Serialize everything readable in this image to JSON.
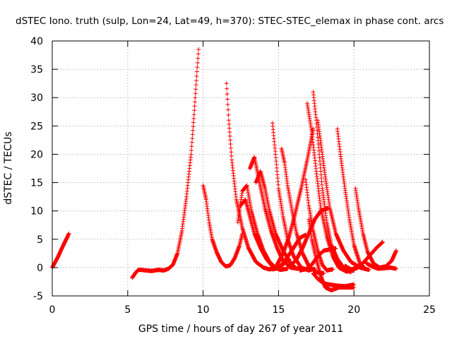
{
  "chart_data": {
    "type": "scatter",
    "title": "dSTEC Iono. truth (sulp, Lon=24, Lat=49, h=370): STEC-STEC_elemax in phase cont. arcs",
    "xlabel": "GPS time / hours of day 267 of year 2011",
    "ylabel": "dSTEC  / TECUs",
    "xlim": [
      0,
      25
    ],
    "ylim": [
      -5,
      40
    ],
    "x_ticks": [
      0,
      5,
      10,
      15,
      20,
      25
    ],
    "y_ticks": [
      -5,
      0,
      5,
      10,
      15,
      20,
      25,
      30,
      35,
      40
    ],
    "x_tick_labels": [
      "0",
      "5",
      "10",
      "15",
      "20",
      "25"
    ],
    "y_tick_labels": [
      "-5",
      "0",
      "5",
      "10",
      "15",
      "20",
      "25",
      "30",
      "35",
      "40"
    ],
    "grid": true,
    "marker": "plus",
    "series_color": "#ff0000",
    "series": [
      {
        "x": [
          0.0,
          0.2,
          0.4,
          0.6,
          0.8,
          1.0,
          1.1
        ],
        "y": [
          0.0,
          1.0,
          2.0,
          3.2,
          4.3,
          5.4,
          6.0
        ]
      },
      {
        "x": [
          5.3,
          5.5,
          5.7,
          5.9,
          6.2,
          6.6,
          7.0,
          7.4,
          7.7,
          8.0,
          8.3,
          8.6,
          8.9,
          9.2,
          9.4,
          9.55,
          9.7
        ],
        "y": [
          -1.8,
          -1.0,
          -0.4,
          -0.4,
          -0.5,
          -0.6,
          -0.4,
          -0.5,
          -0.2,
          0.5,
          2.5,
          6.5,
          12.5,
          20.0,
          27.0,
          33.0,
          38.5
        ]
      },
      {
        "x": [
          10.0,
          10.2,
          10.4,
          10.6,
          10.9,
          11.2,
          11.5,
          11.8,
          12.1,
          12.4,
          12.6
        ],
        "y": [
          14.5,
          12.0,
          8.0,
          5.0,
          2.7,
          1.0,
          0.2,
          0.4,
          1.7,
          3.8,
          6.0
        ]
      },
      {
        "x": [
          11.55,
          11.7,
          11.9,
          12.2,
          12.6,
          13.0,
          13.5,
          14.0,
          14.4,
          14.7
        ],
        "y": [
          32.5,
          26.0,
          19.0,
          12.0,
          7.0,
          3.5,
          1.0,
          0.0,
          -0.3,
          -0.2
        ]
      },
      {
        "x": [
          12.3,
          12.6,
          12.9,
          13.2,
          13.6,
          14.0,
          14.4,
          14.8,
          15.2,
          15.7
        ],
        "y": [
          8.0,
          13.5,
          14.5,
          10.0,
          6.0,
          3.0,
          1.0,
          0.0,
          0.3,
          1.5
        ]
      },
      {
        "x": [
          12.5,
          12.8,
          13.1,
          13.4,
          13.8,
          14.2,
          14.6,
          15.1,
          15.6
        ],
        "y": [
          11.0,
          12.0,
          9.0,
          6.0,
          3.5,
          1.5,
          0.2,
          -0.4,
          -0.2
        ]
      },
      {
        "x": [
          13.1,
          13.4,
          13.7,
          14.1,
          14.5,
          14.9,
          15.3,
          15.8,
          16.3
        ],
        "y": [
          17.5,
          19.5,
          15.5,
          10.5,
          6.5,
          3.5,
          1.2,
          0.0,
          -0.2
        ]
      },
      {
        "x": [
          13.5,
          13.8,
          14.1,
          14.4,
          14.8,
          15.3,
          15.8,
          16.2,
          16.5
        ],
        "y": [
          15.0,
          17.0,
          14.0,
          10.0,
          6.0,
          3.0,
          0.8,
          -0.2,
          0.0
        ]
      },
      {
        "x": [
          14.6,
          14.8,
          15.0,
          15.3,
          15.6,
          16.0,
          16.5,
          17.0,
          17.4
        ],
        "y": [
          25.5,
          20.0,
          14.0,
          9.0,
          5.0,
          2.0,
          0.0,
          -0.5,
          -0.2
        ]
      },
      {
        "x": [
          14.6,
          14.8,
          15.1,
          15.5,
          16.0,
          16.4,
          16.8
        ],
        "y": [
          -0.3,
          -0.2,
          0.2,
          1.5,
          3.5,
          5.2,
          5.8
        ]
      },
      {
        "x": [
          15.2,
          15.4,
          15.6,
          15.9,
          16.2,
          16.6,
          17.0,
          17.5,
          18.0
        ],
        "y": [
          21.0,
          18.5,
          14.5,
          10.0,
          6.0,
          2.5,
          0.3,
          -0.8,
          -1.0
        ]
      },
      {
        "x": [
          14.9,
          15.3,
          15.7,
          16.1,
          16.5,
          16.9,
          17.3
        ],
        "y": [
          0.5,
          2.5,
          5.5,
          9.5,
          14.0,
          19.0,
          24.5
        ]
      },
      {
        "x": [
          15.8,
          16.2,
          16.6,
          17.0,
          17.4,
          17.8,
          18.3
        ],
        "y": [
          0.3,
          1.5,
          3.5,
          6.0,
          8.5,
          10.0,
          10.5
        ]
      },
      {
        "x": [
          16.4,
          16.8,
          17.2,
          17.6,
          18.0,
          18.4,
          18.8
        ],
        "y": [
          -0.5,
          -0.3,
          0.5,
          2.0,
          3.0,
          3.2,
          3.4
        ]
      },
      {
        "x": [
          16.8,
          17.0,
          17.3,
          17.6,
          17.9,
          18.2,
          18.6
        ],
        "y": [
          15.5,
          11.0,
          6.5,
          3.0,
          0.5,
          -0.5,
          -0.3
        ]
      },
      {
        "x": [
          17.3,
          17.6,
          18.0,
          18.4,
          18.9,
          19.4,
          20.0
        ],
        "y": [
          -1.0,
          -2.0,
          -2.8,
          -3.0,
          -3.2,
          -3.3,
          -3.0
        ]
      },
      {
        "x": [
          16.9,
          17.2,
          17.5,
          17.8,
          18.2,
          18.6,
          19.0,
          19.5,
          20.0
        ],
        "y": [
          29.0,
          24.0,
          17.0,
          10.5,
          5.5,
          2.0,
          0.0,
          -0.7,
          -0.5
        ]
      },
      {
        "x": [
          17.3,
          17.5,
          17.7,
          17.9,
          18.2,
          18.5,
          18.9,
          19.4,
          19.8
        ],
        "y": [
          31.0,
          26.0,
          20.0,
          14.0,
          8.0,
          4.0,
          1.5,
          -0.3,
          -0.8
        ]
      },
      {
        "x": [
          17.0,
          17.2,
          17.5,
          17.8,
          18.1,
          18.5,
          19.0,
          19.5,
          20.0
        ],
        "y": [
          8.5,
          5.0,
          1.5,
          -1.5,
          -3.5,
          -4.0,
          -3.5,
          -3.5,
          -3.5
        ]
      },
      {
        "x": [
          17.6,
          17.8,
          18.1,
          18.4,
          18.8,
          19.3,
          19.8,
          20.4,
          21.0
        ],
        "y": [
          26.0,
          22.0,
          16.0,
          10.5,
          6.0,
          3.0,
          1.0,
          0.0,
          -0.4
        ]
      },
      {
        "x": [
          18.9,
          19.1,
          19.4,
          19.7,
          20.0,
          20.4,
          20.8
        ],
        "y": [
          24.5,
          20.0,
          14.0,
          8.5,
          4.0,
          0.7,
          -0.3
        ]
      },
      {
        "x": [
          20.1,
          20.3,
          20.6,
          20.9,
          21.3,
          21.7,
          22.1,
          22.5,
          22.8
        ],
        "y": [
          14.0,
          10.5,
          6.0,
          2.8,
          0.7,
          0.0,
          0.2,
          1.2,
          3.0
        ]
      },
      {
        "x": [
          19.4,
          19.8,
          20.2,
          20.6,
          21.0,
          21.5,
          21.9
        ],
        "y": [
          0.3,
          -0.3,
          -0.1,
          0.8,
          2.0,
          3.5,
          4.5
        ]
      },
      {
        "x": [
          20.8,
          21.2,
          21.6,
          22.0,
          22.4,
          22.8
        ],
        "y": [
          0.8,
          0.2,
          -0.2,
          -0.1,
          0.0,
          -0.2
        ]
      }
    ]
  }
}
